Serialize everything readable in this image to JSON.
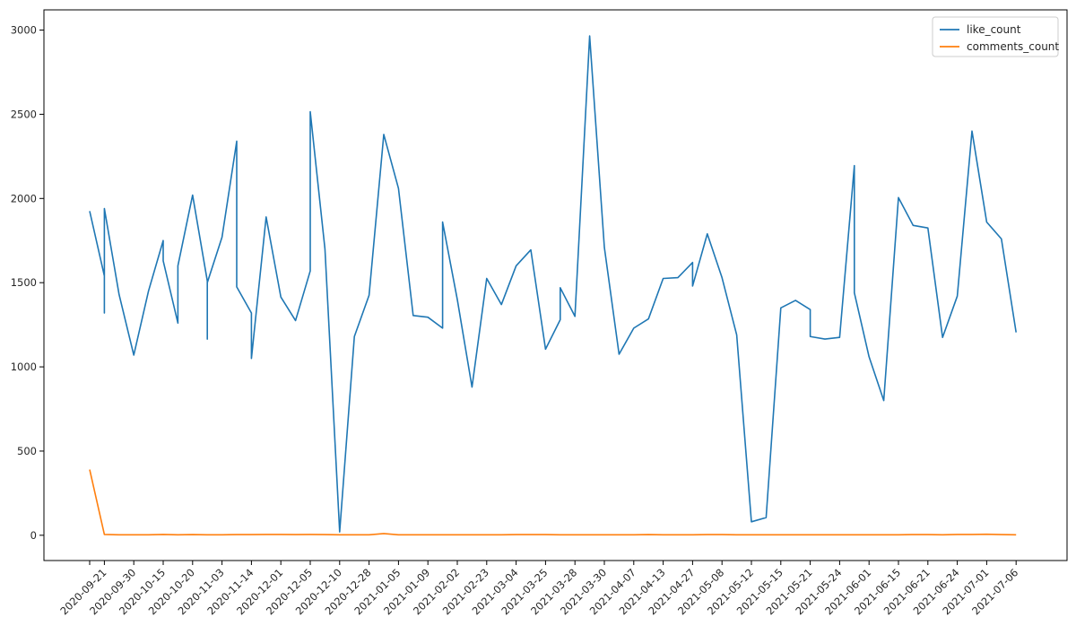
{
  "chart_data": {
    "type": "line",
    "x_tick_labels": [
      "2020-09-21",
      "2020-09-30",
      "2020-10-15",
      "2020-10-20",
      "2020-11-03",
      "2020-11-14",
      "2020-12-01",
      "2020-12-05",
      "2020-12-10",
      "2020-12-28",
      "2021-01-05",
      "2021-01-09",
      "2021-02-02",
      "2021-02-23",
      "2021-03-04",
      "2021-03-25",
      "2021-03-28",
      "2021-03-30",
      "2021-04-07",
      "2021-04-13",
      "2021-04-27",
      "2021-05-08",
      "2021-05-12",
      "2021-05-15",
      "2021-05-21",
      "2021-05-24",
      "2021-06-01",
      "2021-06-15",
      "2021-06-21",
      "2021-06-24",
      "2021-07-01",
      "2021-07-06"
    ],
    "y_ticks": [
      0,
      500,
      1000,
      1500,
      2000,
      2500,
      3000
    ],
    "ylim": [
      -150,
      3120
    ],
    "grid": false,
    "legend_position": "top-right",
    "series": [
      {
        "name": "like_count",
        "color": "#1f77b4",
        "points": [
          [
            0,
            1925
          ],
          [
            1,
            1540
          ],
          [
            1,
            1320
          ],
          [
            1,
            1940
          ],
          [
            2,
            1430
          ],
          [
            3,
            1070
          ],
          [
            4,
            1450
          ],
          [
            5,
            1750
          ],
          [
            5,
            1630
          ],
          [
            6,
            1260
          ],
          [
            6,
            1600
          ],
          [
            7,
            2020
          ],
          [
            8,
            1510
          ],
          [
            8,
            1165
          ],
          [
            8,
            1500
          ],
          [
            9,
            1770
          ],
          [
            10,
            2340
          ],
          [
            10,
            1475
          ],
          [
            11,
            1320
          ],
          [
            11,
            1050
          ],
          [
            12,
            1890
          ],
          [
            13,
            1415
          ],
          [
            14,
            1275
          ],
          [
            15,
            1570
          ],
          [
            15,
            2515
          ],
          [
            16,
            1700
          ],
          [
            17,
            20
          ],
          [
            18,
            1180
          ],
          [
            19,
            1425
          ],
          [
            20,
            2380
          ],
          [
            21,
            2060
          ],
          [
            22,
            1305
          ],
          [
            23,
            1295
          ],
          [
            24,
            1230
          ],
          [
            24,
            1860
          ],
          [
            25,
            1400
          ],
          [
            26,
            880
          ],
          [
            27,
            1525
          ],
          [
            28,
            1370
          ],
          [
            29,
            1600
          ],
          [
            30,
            1695
          ],
          [
            31,
            1105
          ],
          [
            32,
            1280
          ],
          [
            32,
            1470
          ],
          [
            33,
            1300
          ],
          [
            34,
            2965
          ],
          [
            35,
            1710
          ],
          [
            36,
            1075
          ],
          [
            37,
            1230
          ],
          [
            38,
            1285
          ],
          [
            39,
            1525
          ],
          [
            40,
            1530
          ],
          [
            41,
            1620
          ],
          [
            41,
            1480
          ],
          [
            42,
            1790
          ],
          [
            43,
            1530
          ],
          [
            44,
            1190
          ],
          [
            45,
            80
          ],
          [
            46,
            105
          ],
          [
            47,
            1350
          ],
          [
            48,
            1395
          ],
          [
            49,
            1340
          ],
          [
            49,
            1180
          ],
          [
            50,
            1165
          ],
          [
            51,
            1175
          ],
          [
            52,
            2195
          ],
          [
            52,
            1440
          ],
          [
            53,
            1060
          ],
          [
            54,
            800
          ],
          [
            55,
            2005
          ],
          [
            56,
            1840
          ],
          [
            57,
            1825
          ],
          [
            58,
            1175
          ],
          [
            59,
            1420
          ],
          [
            60,
            2400
          ],
          [
            61,
            1860
          ],
          [
            62,
            1760
          ],
          [
            63,
            1205
          ]
        ]
      },
      {
        "name": "comments_count",
        "color": "#ff7f0e",
        "points": [
          [
            0,
            390
          ],
          [
            1,
            5
          ],
          [
            2,
            3
          ],
          [
            3,
            3
          ],
          [
            4,
            3
          ],
          [
            5,
            5
          ],
          [
            6,
            3
          ],
          [
            7,
            4
          ],
          [
            8,
            3
          ],
          [
            9,
            3
          ],
          [
            10,
            4
          ],
          [
            11,
            4
          ],
          [
            12,
            5
          ],
          [
            13,
            5
          ],
          [
            14,
            4
          ],
          [
            15,
            5
          ],
          [
            16,
            4
          ],
          [
            17,
            3
          ],
          [
            18,
            3
          ],
          [
            19,
            3
          ],
          [
            20,
            10
          ],
          [
            21,
            3
          ],
          [
            22,
            3
          ],
          [
            23,
            3
          ],
          [
            24,
            3
          ],
          [
            25,
            3
          ],
          [
            26,
            3
          ],
          [
            27,
            3
          ],
          [
            28,
            3
          ],
          [
            29,
            4
          ],
          [
            30,
            4
          ],
          [
            31,
            4
          ],
          [
            32,
            3
          ],
          [
            33,
            3
          ],
          [
            34,
            3
          ],
          [
            35,
            3
          ],
          [
            36,
            3
          ],
          [
            37,
            3
          ],
          [
            38,
            4
          ],
          [
            39,
            3
          ],
          [
            40,
            3
          ],
          [
            41,
            3
          ],
          [
            42,
            4
          ],
          [
            43,
            4
          ],
          [
            44,
            3
          ],
          [
            45,
            3
          ],
          [
            46,
            3
          ],
          [
            47,
            3
          ],
          [
            48,
            3
          ],
          [
            49,
            3
          ],
          [
            50,
            3
          ],
          [
            51,
            3
          ],
          [
            52,
            3
          ],
          [
            53,
            3
          ],
          [
            54,
            3
          ],
          [
            55,
            3
          ],
          [
            56,
            4
          ],
          [
            57,
            4
          ],
          [
            58,
            3
          ],
          [
            59,
            5
          ],
          [
            60,
            5
          ],
          [
            61,
            6
          ],
          [
            62,
            4
          ],
          [
            63,
            3
          ]
        ]
      }
    ]
  }
}
